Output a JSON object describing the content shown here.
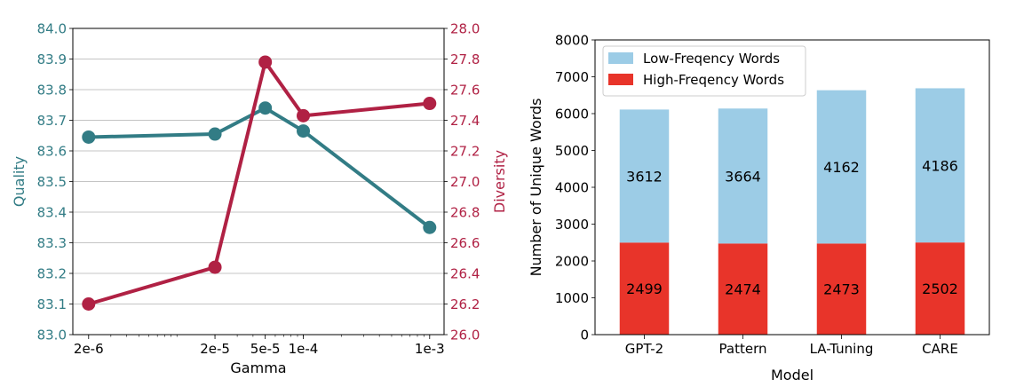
{
  "chart_data": [
    {
      "type": "line",
      "title": "",
      "xlabel": "Gamma",
      "x_scale": "log",
      "x": [
        2e-06,
        2e-05,
        5e-05,
        0.0001,
        0.001
      ],
      "x_tick_labels": [
        "2e-6",
        "2e-5",
        "5e-5",
        "1e-4",
        "1e-3"
      ],
      "grid": true,
      "y_left": {
        "label": "Quality",
        "lim": [
          83.0,
          84.0
        ],
        "ticks": [
          "83.0",
          "83.1",
          "83.2",
          "83.3",
          "83.4",
          "83.5",
          "83.6",
          "83.7",
          "83.8",
          "83.9",
          "84.0"
        ],
        "color": "#327c85"
      },
      "y_right": {
        "label": "Diversity",
        "lim": [
          26.0,
          28.0
        ],
        "ticks": [
          "26.0",
          "26.2",
          "26.4",
          "26.6",
          "26.8",
          "27.0",
          "27.2",
          "27.4",
          "27.6",
          "27.8",
          "28.0"
        ],
        "color": "#b02144"
      },
      "series": [
        {
          "axis": "left",
          "color": "#327c85",
          "values": [
            83.645,
            83.655,
            83.74,
            83.665,
            83.35
          ]
        },
        {
          "axis": "right",
          "color": "#b02144",
          "values": [
            26.2,
            26.44,
            27.78,
            27.43,
            27.51
          ]
        }
      ]
    },
    {
      "type": "bar",
      "stacked": true,
      "title": "",
      "xlabel": "Model",
      "ylabel": "Number of Unique Words",
      "ylim": [
        0,
        8000
      ],
      "y_ticks": [
        "0",
        "1000",
        "2000",
        "3000",
        "4000",
        "5000",
        "6000",
        "7000",
        "8000"
      ],
      "categories": [
        "GPT-2",
        "Pattern",
        "LA-Tuning",
        "CARE"
      ],
      "legend_position": "top-left",
      "series": [
        {
          "name": "High-Freqency Words",
          "color": "#e8342a",
          "values": [
            2499,
            2474,
            2473,
            2502
          ],
          "labels": [
            "2499",
            "2474",
            "2473",
            "2502"
          ]
        },
        {
          "name": "Low-Freqency Words",
          "color": "#9ccce6",
          "values": [
            3612,
            3664,
            4162,
            4186
          ],
          "labels": [
            "3612",
            "3664",
            "4162",
            "4186"
          ]
        }
      ],
      "legend_order": [
        "Low-Freqency Words",
        "High-Freqency Words"
      ]
    }
  ]
}
